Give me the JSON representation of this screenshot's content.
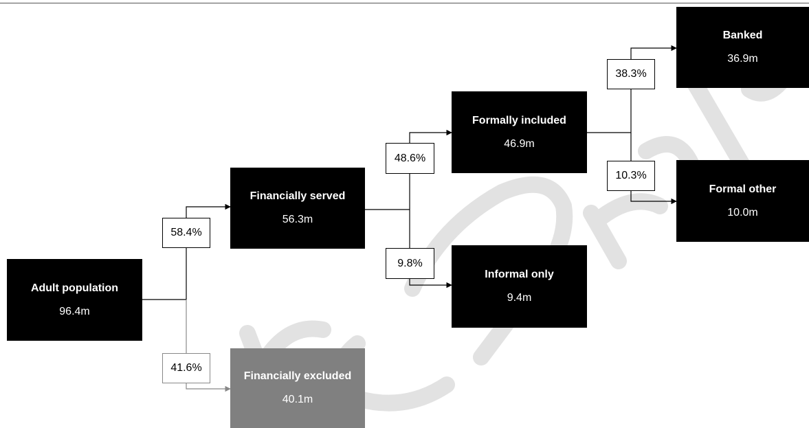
{
  "nodes": {
    "adult": {
      "title": "Adult population",
      "value": "96.4m"
    },
    "served": {
      "title": "Financially served",
      "value": "56.3m"
    },
    "excluded": {
      "title": "Financially excluded",
      "value": "40.1m"
    },
    "formal": {
      "title": "Formally included",
      "value": "46.9m"
    },
    "informal": {
      "title": "Informal only",
      "value": "9.4m"
    },
    "banked": {
      "title": "Banked",
      "value": "36.9m"
    },
    "formal_other": {
      "title": "Formal other",
      "value": "10.0m"
    }
  },
  "percentages": {
    "served": "58.4%",
    "excluded": "41.6%",
    "formal": "48.6%",
    "informal": "9.8%",
    "banked": "38.3%",
    "formal_other": "10.3%"
  },
  "colors": {
    "included": "#000000",
    "excluded": "#808080",
    "connector": "#000000",
    "excluded_connector": "#888888"
  }
}
